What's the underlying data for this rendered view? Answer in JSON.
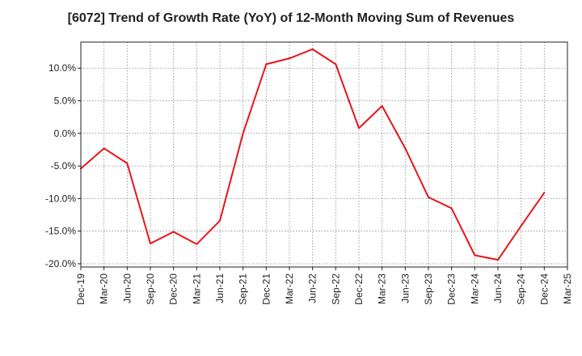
{
  "chart_data": {
    "type": "line",
    "title": "[6072]  Trend of Growth Rate (YoY) of 12-Month Moving Sum of Revenues",
    "xlabel": "",
    "ylabel": "",
    "ylim": [
      -20.5,
      14.0
    ],
    "grid": true,
    "y_ticks": [
      10,
      5,
      0,
      -5,
      -10,
      -15,
      -20
    ],
    "y_tick_labels": [
      "10.0%",
      "5.0%",
      "0.0%",
      "-5.0%",
      "-10.0%",
      "-15.0%",
      "-20.0%"
    ],
    "x_tick_labels": [
      "Dec-19",
      "Mar-20",
      "Jun-20",
      "Sep-20",
      "Dec-20",
      "Mar-21",
      "Jun-21",
      "Sep-21",
      "Dec-21",
      "Mar-22",
      "Jun-22",
      "Sep-22",
      "Dec-22",
      "Mar-23",
      "Jun-23",
      "Sep-23",
      "Dec-23",
      "Mar-24",
      "Jun-24",
      "Sep-24",
      "Dec-24",
      "Mar-25"
    ],
    "series": [
      {
        "color": "#e8141c",
        "values": [
          -5.4,
          -2.3,
          -4.6,
          -16.9,
          -15.1,
          -17.0,
          -13.4,
          0.0,
          10.6,
          11.5,
          12.9,
          10.6,
          0.8,
          4.2,
          -2.3,
          -9.8,
          -11.5,
          -18.7,
          -19.4,
          -14.2,
          -9.1
        ]
      }
    ]
  }
}
